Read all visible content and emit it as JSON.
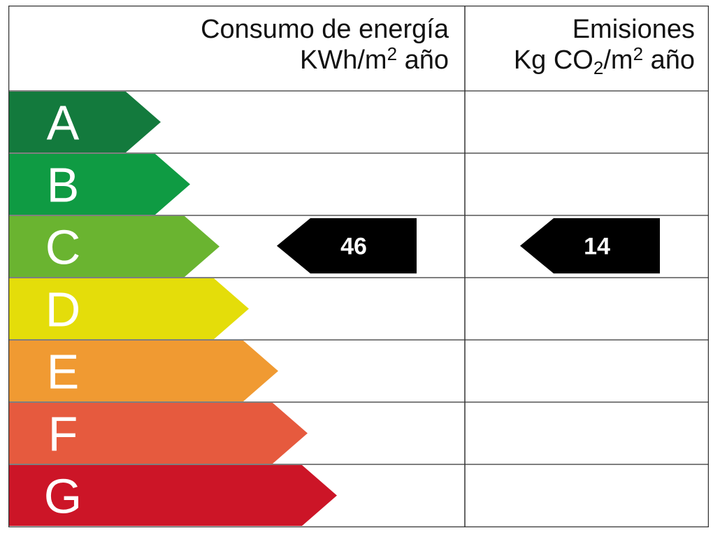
{
  "header": {
    "energy": {
      "title": "Consumo de energía",
      "unit_prefix": "KWh/m",
      "unit_exp": "2",
      "unit_suffix": " año"
    },
    "emissions": {
      "title": "Emisiones",
      "unit_prefix": "Kg CO",
      "unit_sub": "2",
      "unit_mid": "/m",
      "unit_exp": "2",
      "unit_suffix": " año"
    }
  },
  "classes": [
    {
      "letter": "A",
      "color": "#137a3d"
    },
    {
      "letter": "B",
      "color": "#0f9b43"
    },
    {
      "letter": "C",
      "color": "#6ab430"
    },
    {
      "letter": "D",
      "color": "#e4dd0a"
    },
    {
      "letter": "E",
      "color": "#f09a32"
    },
    {
      "letter": "F",
      "color": "#e65a3e"
    },
    {
      "letter": "G",
      "color": "#cc1527"
    }
  ],
  "ratings": {
    "energy": {
      "class": "C",
      "value": "46"
    },
    "emissions": {
      "class": "C",
      "value": "14"
    }
  },
  "colors": {
    "border": "#333333",
    "marker": "#000000",
    "text": "#111111"
  }
}
